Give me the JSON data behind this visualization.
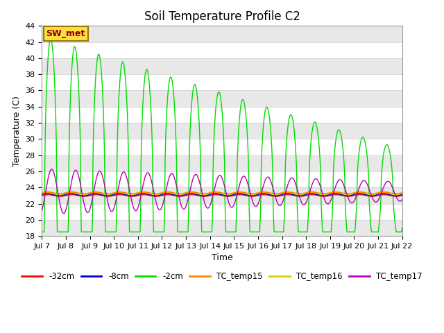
{
  "title": "Soil Temperature Profile C2",
  "xlabel": "Time",
  "ylabel": "Temperature (C)",
  "ylim": [
    18,
    44
  ],
  "xlim_start": 0,
  "xlim_end": 15,
  "xtick_labels": [
    "Jul 7",
    "Jul 8",
    "Jul 9",
    "Jul 10",
    "Jul 11",
    "Jul 12",
    "Jul 13",
    "Jul 14",
    "Jul 15",
    "Jul 16",
    "Jul 17",
    "Jul 18",
    "Jul 19",
    "Jul 20",
    "Jul 21",
    "Jul 22"
  ],
  "xtick_positions": [
    0,
    1,
    2,
    3,
    4,
    5,
    6,
    7,
    8,
    9,
    10,
    11,
    12,
    13,
    14,
    15
  ],
  "ytick_positions": [
    18,
    20,
    22,
    24,
    26,
    28,
    30,
    32,
    34,
    36,
    38,
    40,
    42,
    44
  ],
  "legend_labels": [
    "-32cm",
    "-8cm",
    "-2cm",
    "TC_temp15",
    "TC_temp16",
    "TC_temp17"
  ],
  "line_colors": [
    "#ff0000",
    "#0000cc",
    "#00dd00",
    "#ff8800",
    "#ddcc00",
    "#bb00bb"
  ],
  "annotation_text": "SW_met",
  "annotation_box_facecolor": "#ffdd44",
  "annotation_box_edgecolor": "#997700",
  "annotation_text_color": "#880000",
  "gray_band_color": "#e8e8e8",
  "base_temp": 23.2,
  "n_points": 3000
}
